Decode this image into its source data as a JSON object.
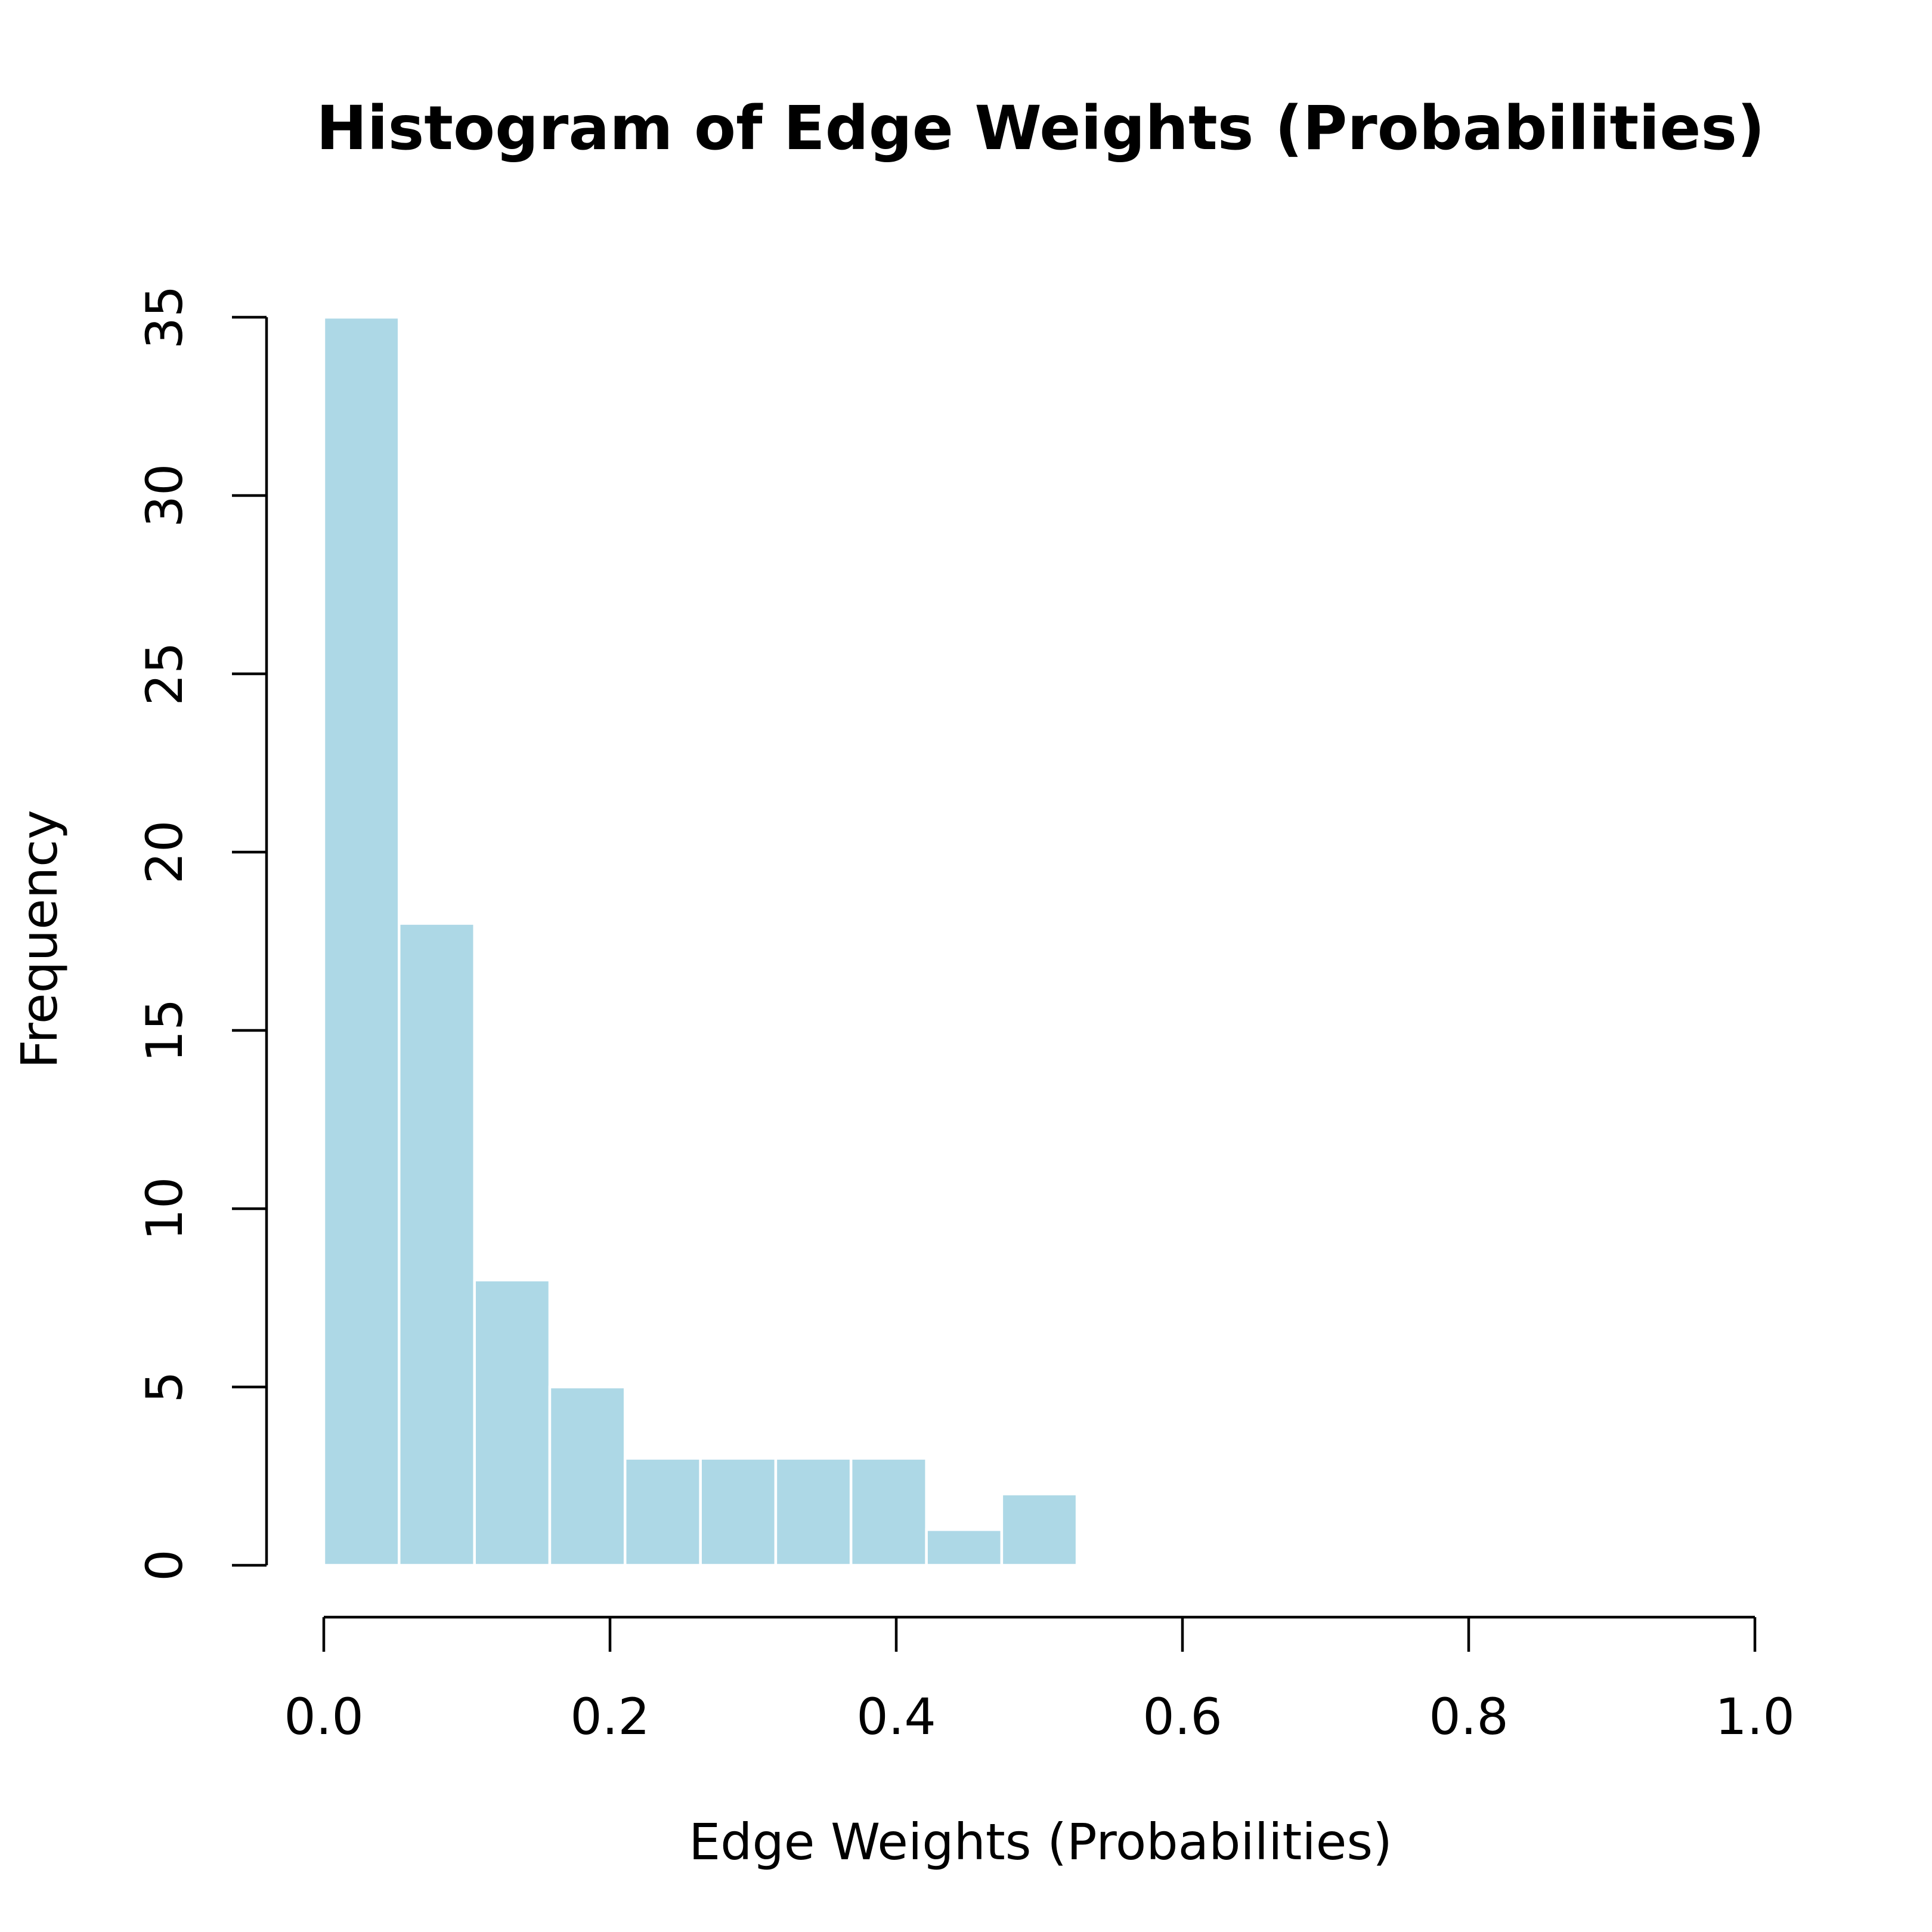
{
  "chart_data": {
    "type": "bar",
    "title": "Histogram of Edge Weights (Probabilities)",
    "xlabel": "Edge Weights (Probabilities)",
    "ylabel": "Frequency",
    "bin_edges": [
      0.0,
      0.0526,
      0.1053,
      0.1579,
      0.2105,
      0.2632,
      0.3158,
      0.3684,
      0.4211,
      0.4737,
      0.5263
    ],
    "values": [
      35,
      18,
      8,
      5,
      3,
      3,
      3,
      3,
      1,
      2
    ],
    "xlim": [
      0,
      1
    ],
    "ylim": [
      0,
      35
    ],
    "x_ticks": [
      "0.0",
      "0.2",
      "0.4",
      "0.6",
      "0.8",
      "1.0"
    ],
    "y_ticks": [
      "0",
      "5",
      "10",
      "15",
      "20",
      "25",
      "30",
      "35"
    ],
    "bar_color": "#add8e6",
    "bar_border_color": "#ffffff",
    "grid": false
  }
}
